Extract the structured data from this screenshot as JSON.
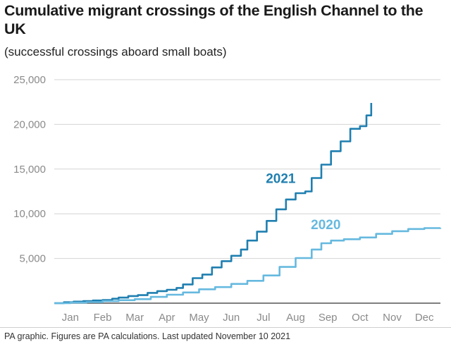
{
  "header": {
    "title": "Cumulative migrant crossings of the English Channel to the UK",
    "subtitle": "(successful crossings aboard small boats)"
  },
  "footer": {
    "note": "PA graphic. Figures are PA calculations. Last updated November 10 2021"
  },
  "colors": {
    "series_2021": "#1f7fb0",
    "series_2020": "#66b9df",
    "grid": "#d4d4d4",
    "axis": "#555555",
    "tick_text": "#8a8a8a"
  },
  "chart_data": {
    "type": "line",
    "title": "Cumulative migrant crossings of the English Channel to the UK",
    "subtitle": "(successful crossings aboard small boats)",
    "xlabel": "",
    "ylabel": "",
    "x_unit": "month (1 = Jan 1, 13 = Dec 31)",
    "x_tick_labels": [
      "Jan",
      "Feb",
      "Mar",
      "Apr",
      "May",
      "Jun",
      "Jul",
      "Aug",
      "Sep",
      "Oct",
      "Nov",
      "Dec"
    ],
    "y_tick_labels": [
      "5,000",
      "10,000",
      "15,000",
      "20,000",
      "25,000"
    ],
    "y_ticks": [
      5000,
      10000,
      15000,
      20000,
      25000
    ],
    "ylim": [
      0,
      25000
    ],
    "xlim": [
      1,
      13
    ],
    "grid": true,
    "series": [
      {
        "name": "2021",
        "color": "#1f7fb0",
        "points": [
          [
            1.0,
            0
          ],
          [
            1.3,
            100
          ],
          [
            1.6,
            170
          ],
          [
            1.9,
            240
          ],
          [
            2.2,
            300
          ],
          [
            2.5,
            350
          ],
          [
            2.8,
            500
          ],
          [
            3.0,
            620
          ],
          [
            3.3,
            800
          ],
          [
            3.6,
            900
          ],
          [
            3.9,
            1150
          ],
          [
            4.2,
            1350
          ],
          [
            4.5,
            1500
          ],
          [
            4.8,
            1700
          ],
          [
            5.0,
            2100
          ],
          [
            5.3,
            2800
          ],
          [
            5.6,
            3200
          ],
          [
            5.9,
            4000
          ],
          [
            6.2,
            4700
          ],
          [
            6.5,
            5300
          ],
          [
            6.8,
            6000
          ],
          [
            7.0,
            7000
          ],
          [
            7.3,
            8000
          ],
          [
            7.6,
            9200
          ],
          [
            7.9,
            10500
          ],
          [
            8.2,
            11600
          ],
          [
            8.5,
            12300
          ],
          [
            8.8,
            12500
          ],
          [
            9.0,
            14000
          ],
          [
            9.3,
            15500
          ],
          [
            9.6,
            17000
          ],
          [
            9.9,
            18100
          ],
          [
            10.2,
            19500
          ],
          [
            10.5,
            19800
          ],
          [
            10.7,
            21000
          ],
          [
            10.85,
            22400
          ]
        ],
        "label_at": [
          8.5,
          12500
        ]
      },
      {
        "name": "2020",
        "color": "#66b9df",
        "points": [
          [
            1.0,
            0
          ],
          [
            1.5,
            60
          ],
          [
            2.0,
            120
          ],
          [
            2.5,
            230
          ],
          [
            3.0,
            330
          ],
          [
            3.5,
            450
          ],
          [
            4.0,
            700
          ],
          [
            4.5,
            950
          ],
          [
            5.0,
            1200
          ],
          [
            5.5,
            1550
          ],
          [
            6.0,
            1800
          ],
          [
            6.5,
            2150
          ],
          [
            7.0,
            2500
          ],
          [
            7.5,
            3100
          ],
          [
            8.0,
            4050
          ],
          [
            8.5,
            5050
          ],
          [
            9.0,
            6000
          ],
          [
            9.3,
            6700
          ],
          [
            9.6,
            7000
          ],
          [
            10.0,
            7150
          ],
          [
            10.5,
            7350
          ],
          [
            11.0,
            7750
          ],
          [
            11.5,
            8050
          ],
          [
            12.0,
            8300
          ],
          [
            12.5,
            8400
          ],
          [
            13.0,
            8420
          ]
        ],
        "label_at": [
          9.9,
          7350
        ]
      }
    ]
  }
}
